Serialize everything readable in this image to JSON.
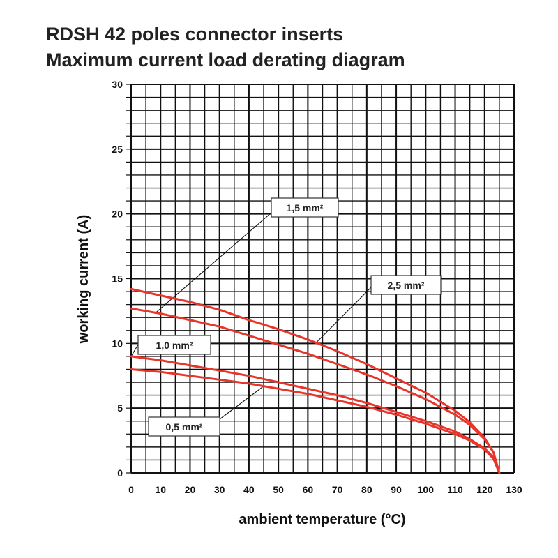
{
  "title_line1": "RDSH 42 poles connector inserts",
  "title_line2": "Maximum current load derating diagram",
  "chart_data": {
    "type": "line",
    "title": "RDSH 42 poles connector inserts Maximum current load derating diagram",
    "xlabel": "ambient temperature (°C)",
    "ylabel": "working current (A)",
    "xlim": [
      0,
      130
    ],
    "ylim": [
      0,
      30
    ],
    "x_ticks": [
      "0",
      "10",
      "20",
      "30",
      "40",
      "50",
      "60",
      "70",
      "80",
      "90",
      "100",
      "110",
      "120",
      "130"
    ],
    "y_ticks": [
      "0",
      "5",
      "10",
      "15",
      "20",
      "25",
      "30"
    ],
    "grid": true,
    "curve_color": "#e8352b",
    "series": [
      {
        "name": "0,5 mm²",
        "x": [
          0,
          10,
          20,
          30,
          40,
          50,
          60,
          70,
          80,
          90,
          100,
          110,
          115,
          120,
          123,
          125
        ],
        "y": [
          8.0,
          7.8,
          7.5,
          7.2,
          6.9,
          6.5,
          6.1,
          5.6,
          5.1,
          4.5,
          3.8,
          3.0,
          2.5,
          1.8,
          1.1,
          0.0
        ]
      },
      {
        "name": "1,0 mm²",
        "x": [
          0,
          10,
          20,
          30,
          40,
          50,
          60,
          70,
          80,
          90,
          100,
          110,
          115,
          120,
          123,
          125
        ],
        "y": [
          9.0,
          8.7,
          8.3,
          7.9,
          7.5,
          7.0,
          6.5,
          6.0,
          5.4,
          4.7,
          4.0,
          3.2,
          2.6,
          1.9,
          1.2,
          0.0
        ]
      },
      {
        "name": "1,5 mm²",
        "x": [
          0,
          10,
          20,
          30,
          40,
          50,
          60,
          70,
          80,
          90,
          100,
          110,
          115,
          120,
          123,
          125
        ],
        "y": [
          12.7,
          12.3,
          11.8,
          11.3,
          10.6,
          9.9,
          9.2,
          8.4,
          7.6,
          6.7,
          5.7,
          4.5,
          3.7,
          2.6,
          1.6,
          0.0
        ]
      },
      {
        "name": "2,5 mm²",
        "x": [
          0,
          10,
          20,
          30,
          40,
          50,
          60,
          70,
          80,
          90,
          100,
          110,
          115,
          120,
          123,
          125
        ],
        "y": [
          14.2,
          13.7,
          13.2,
          12.6,
          11.8,
          11.1,
          10.3,
          9.4,
          8.4,
          7.3,
          6.2,
          4.8,
          3.9,
          2.7,
          1.6,
          0.0
        ]
      }
    ],
    "callouts": [
      {
        "label": "1,5 mm²",
        "series": "1,5 mm²",
        "x": 8,
        "y": 12.3
      },
      {
        "label": "2,5 mm²",
        "series": "2,5 mm²",
        "x": 63,
        "y": 10.1
      },
      {
        "label": "1,0 mm²",
        "series": "1,0 mm²",
        "x": 0,
        "y": 9.0
      },
      {
        "label": "0,5 mm²",
        "series": "0,5 mm²",
        "x": 45,
        "y": 6.7
      }
    ]
  }
}
